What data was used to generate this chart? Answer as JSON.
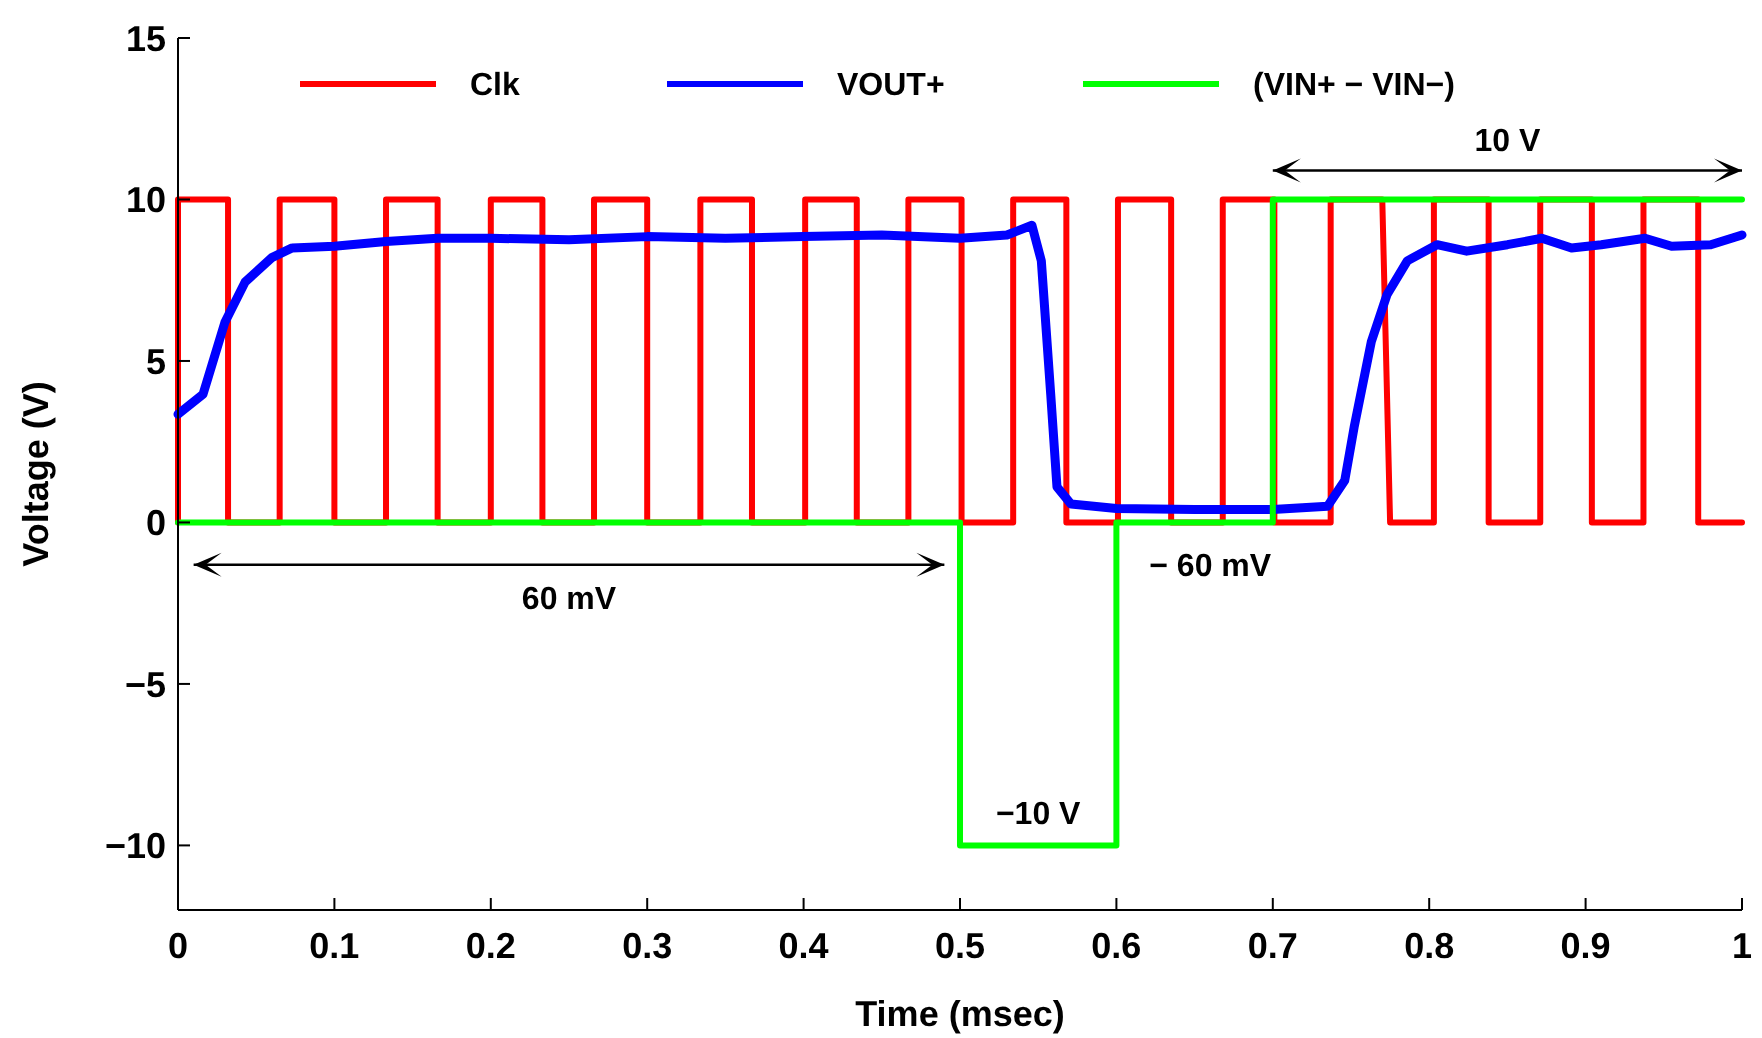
{
  "chart_data": {
    "type": "line",
    "xlabel": "Time (msec)",
    "ylabel": "Voltage (V)",
    "xlim": [
      0,
      1
    ],
    "ylim": [
      -12,
      15
    ],
    "xticks": [
      0,
      0.1,
      0.2,
      0.3,
      0.4,
      0.5,
      0.6,
      0.7,
      0.8,
      0.9,
      1
    ],
    "yticks": [
      {
        "value": -10,
        "label": "−10"
      },
      {
        "value": -5,
        "label": "−5"
      },
      0,
      5,
      10,
      15
    ],
    "grid": false,
    "legend": "top",
    "line_style": "solid",
    "marker": "none",
    "series": [
      {
        "name": "Clk",
        "color": "#ff0000",
        "x": [
          0,
          0,
          0.032,
          0.032,
          0.065,
          0.065,
          0.1,
          0.1,
          0.133,
          0.133,
          0.166,
          0.166,
          0.2,
          0.2,
          0.233,
          0.233,
          0.266,
          0.266,
          0.3,
          0.3,
          0.334,
          0.334,
          0.367,
          0.367,
          0.401,
          0.401,
          0.434,
          0.434,
          0.467,
          0.467,
          0.501,
          0.501,
          0.534,
          0.534,
          0.568,
          0.568,
          0.601,
          0.601,
          0.635,
          0.635,
          0.668,
          0.668,
          0.701,
          0.701,
          0.737,
          0.737,
          0.77,
          0.775,
          0.803,
          0.803,
          0.838,
          0.838,
          0.871,
          0.871,
          0.904,
          0.904,
          0.937,
          0.937,
          0.972,
          0.972,
          1
        ],
        "values": [
          0,
          10,
          10,
          0,
          0,
          10,
          10,
          0,
          0,
          10,
          10,
          0,
          0,
          10,
          10,
          0,
          0,
          10,
          10,
          0,
          0,
          10,
          10,
          0,
          0,
          10,
          10,
          0,
          0,
          10,
          10,
          0,
          0,
          10,
          10,
          0,
          0,
          10,
          10,
          0,
          0,
          10,
          10,
          0,
          0,
          10,
          10,
          0,
          0,
          10,
          10,
          0,
          0,
          10,
          10,
          0,
          0,
          10,
          10,
          0,
          0
        ]
      },
      {
        "name": "VOUT+",
        "color": "#0000ff",
        "x": [
          0,
          0.016,
          0.03,
          0.043,
          0.06,
          0.073,
          0.1,
          0.133,
          0.166,
          0.2,
          0.25,
          0.3,
          0.35,
          0.4,
          0.45,
          0.5,
          0.53,
          0.546,
          0.552,
          0.558,
          0.562,
          0.571,
          0.6,
          0.65,
          0.7,
          0.735,
          0.746,
          0.752,
          0.763,
          0.773,
          0.786,
          0.805,
          0.824,
          0.85,
          0.872,
          0.891,
          0.91,
          0.938,
          0.955,
          0.98,
          1
        ],
        "values": [
          3.35,
          3.97,
          6.2,
          7.45,
          8.2,
          8.5,
          8.55,
          8.7,
          8.8,
          8.8,
          8.75,
          8.85,
          8.8,
          8.85,
          8.9,
          8.8,
          8.9,
          9.2,
          8.1,
          3.97,
          1.1,
          0.57,
          0.43,
          0.4,
          0.4,
          0.5,
          1.3,
          2.95,
          5.6,
          7.05,
          8.1,
          8.6,
          8.4,
          8.6,
          8.8,
          8.5,
          8.6,
          8.8,
          8.55,
          8.6,
          8.9
        ]
      },
      {
        "name": "(VIN+ − VIN−)",
        "color": "#00ff00",
        "type": "step",
        "x": [
          0,
          0.5,
          0.6,
          0.7,
          1
        ],
        "values": [
          0,
          -10,
          0,
          10,
          10
        ]
      }
    ],
    "annotations": [
      "60 mV",
      "− 60 mV",
      "−10 V",
      "10 V"
    ]
  }
}
